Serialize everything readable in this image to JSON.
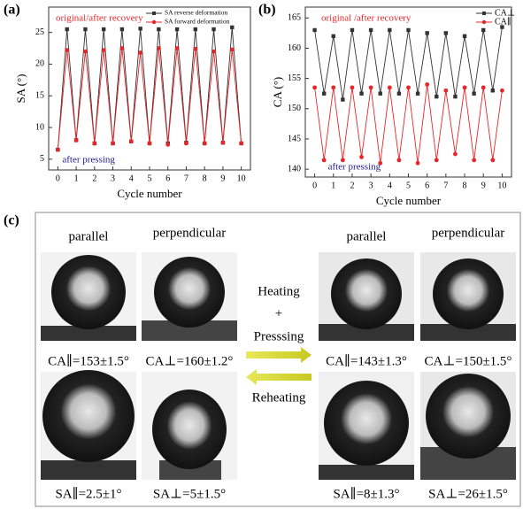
{
  "chart_data": [
    {
      "type": "line",
      "panel_label": "(a)",
      "ylabel": "SA (°)",
      "xlabel": "Cycle number",
      "x": [
        0,
        0.5,
        1,
        1.5,
        2,
        2.5,
        3,
        3.5,
        4,
        4.5,
        5,
        5.5,
        6,
        6.5,
        7,
        7.5,
        8,
        8.5,
        9,
        9.5,
        10
      ],
      "xlim": [
        -0.5,
        10.5
      ],
      "xticks": [
        0,
        1,
        2,
        3,
        4,
        5,
        6,
        7,
        8,
        9,
        10
      ],
      "ylim": [
        3.3,
        29
      ],
      "yticks": [
        5,
        10,
        15,
        20,
        25
      ],
      "series": [
        {
          "name": "SA reverse deformation",
          "color": "#333333",
          "marker": "square",
          "values": [
            6.5,
            25.5,
            8,
            25.5,
            7.5,
            25.5,
            7.5,
            25.5,
            7.8,
            25.6,
            7.5,
            25.5,
            7.5,
            25.5,
            7.6,
            25.5,
            7.5,
            25.5,
            7.6,
            25.8,
            7.5
          ]
        },
        {
          "name": "SA forward deformation",
          "color": "#e8262a",
          "marker": "circle",
          "values": [
            6.5,
            22.2,
            8,
            22,
            7.5,
            22.2,
            7.5,
            22.5,
            7.8,
            21.8,
            7.5,
            22.5,
            7.3,
            22.5,
            7.5,
            22.4,
            7.5,
            22,
            7.6,
            22.3,
            7.5
          ]
        }
      ],
      "annotations": [
        {
          "text": "original/after recovery",
          "color": "#e8262a"
        },
        {
          "text": "after pressing",
          "color": "#1a1a8c"
        }
      ]
    },
    {
      "type": "line",
      "panel_label": "(b)",
      "ylabel": "CA (°)",
      "xlabel": "Cycle number",
      "x": [
        0,
        0.5,
        1,
        1.5,
        2,
        2.5,
        3,
        3.5,
        4,
        4.5,
        5,
        5.5,
        6,
        6.5,
        7,
        7.5,
        8,
        8.5,
        9,
        9.5,
        10
      ],
      "xlim": [
        -0.5,
        10.5
      ],
      "xticks": [
        0,
        1,
        2,
        3,
        4,
        5,
        6,
        7,
        8,
        9,
        10
      ],
      "ylim": [
        138.7,
        166.8
      ],
      "yticks": [
        140,
        145,
        150,
        155,
        160,
        165
      ],
      "series": [
        {
          "name": "CA⊥",
          "color": "#333333",
          "marker": "square",
          "values": [
            163,
            152.5,
            162,
            151.5,
            163,
            152.5,
            163,
            152.5,
            163,
            152.5,
            163,
            152.5,
            162.5,
            152,
            162.5,
            152,
            162,
            152.5,
            163,
            153,
            163.5
          ]
        },
        {
          "name": "CA∥",
          "color": "#e8262a",
          "marker": "circle",
          "values": [
            153.5,
            141.5,
            153.5,
            141.5,
            153.5,
            142,
            153.5,
            141,
            153.5,
            141.5,
            153.5,
            141,
            154,
            141.5,
            153,
            142.5,
            153.5,
            141.5,
            153.5,
            141.5,
            153
          ]
        }
      ],
      "annotations": [
        {
          "text": "original /after recovery",
          "color": "#e8262a"
        },
        {
          "text": "after pressing",
          "color": "#1a1a8c"
        }
      ]
    }
  ],
  "panel_c": {
    "label": "(c)",
    "headers": [
      "parallel",
      "perpendicular",
      "parallel",
      "perpendicular"
    ],
    "captions_top": [
      "CA∥=153±1.5°",
      "CA⊥=160±1.2°",
      "CA∥=143±1.3°",
      "CA⊥=150±1.5°"
    ],
    "captions_bottom": [
      "SA∥=2.5±1°",
      "SA⊥=5±1.5°",
      "SA∥=8±1.3°",
      "SA⊥=26±1.5°"
    ],
    "process": [
      "Heating",
      "+",
      "Presssing",
      "Reheating"
    ]
  }
}
